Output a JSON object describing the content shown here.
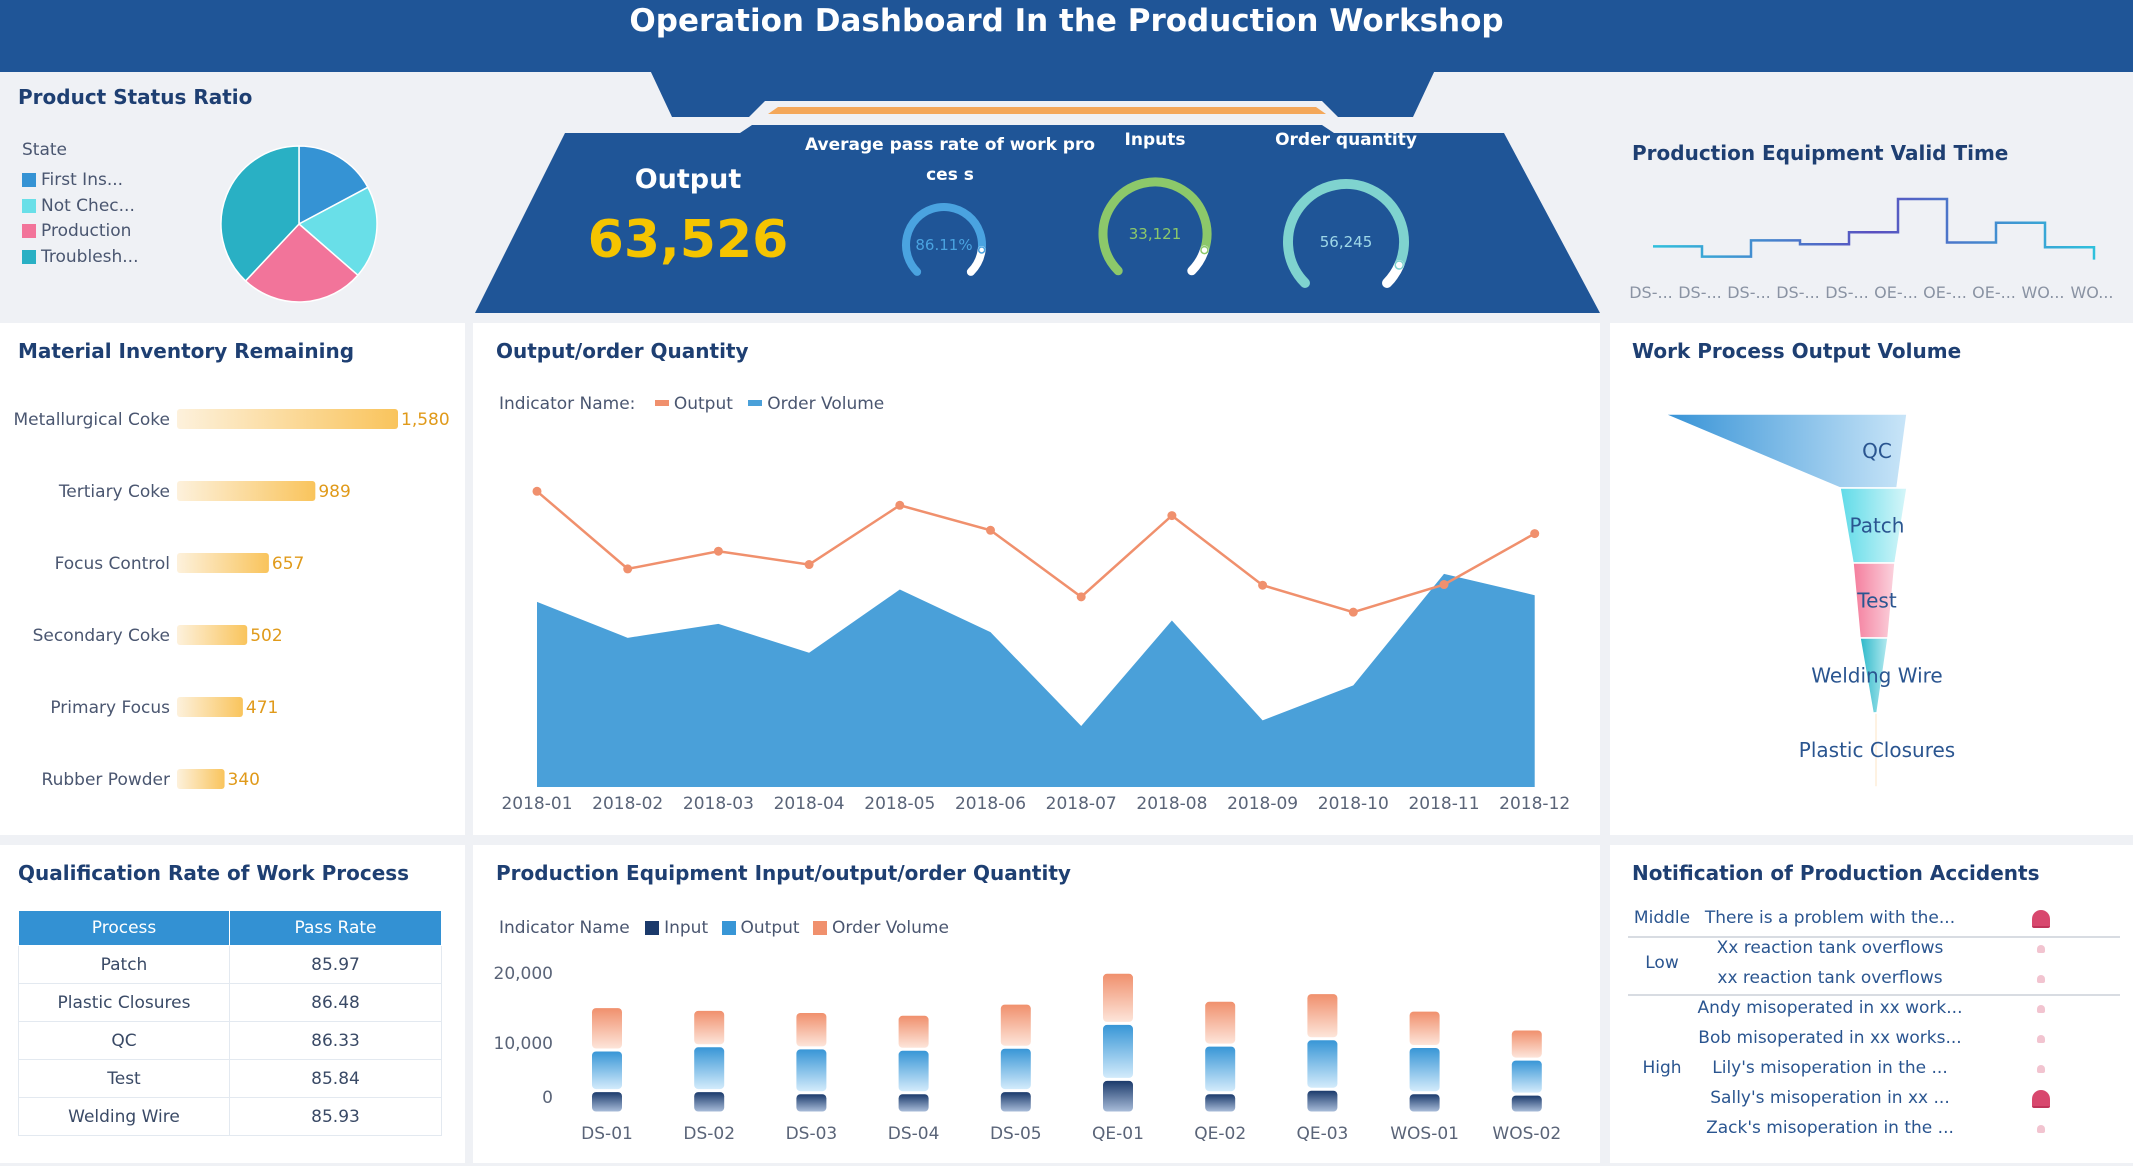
{
  "header": {
    "title": "Operation Dashboard In the Production Workshop"
  },
  "colors": {
    "header": "#1f5597",
    "title": "#1e3f72",
    "kpi_value": "#f5c400",
    "accent_orange": "#f4a85a"
  },
  "product_status": {
    "title": "Product Status Ratio",
    "legend_title": "State",
    "items": [
      {
        "label": "First Ins...",
        "percent": 17.2,
        "color": "#3593d4"
      },
      {
        "label": "Not Chec...",
        "percent": 19.2,
        "color": "#69dfe8"
      },
      {
        "label": "Production",
        "percent": 25.6,
        "color": "#f2749a"
      },
      {
        "label": "Troublesh...",
        "percent": 38.0,
        "color": "#29b0c4"
      }
    ]
  },
  "kpis": {
    "output": {
      "label": "Output",
      "value": "63,526"
    },
    "pass_rate": {
      "label": "Average pass rate of work proces s",
      "value": "86.11%",
      "fill": 0.8611,
      "color": "#4aa3e0"
    },
    "inputs": {
      "label": "Inputs",
      "value": "33,121",
      "fill": 0.9,
      "color": "#8cc86a"
    },
    "order_quantity": {
      "label": "Order quantity",
      "value": "56,245",
      "fill": 0.92,
      "color": "#7fd3cf"
    }
  },
  "equipment_valid_time": {
    "title": "Production Equipment Valid Time",
    "chart_data": {
      "type": "line",
      "step": true,
      "categories": [
        "DS-...",
        "DS-...",
        "DS-...",
        "DS-...",
        "DS-...",
        "OE-...",
        "OE-...",
        "OE-...",
        "WO...",
        "WO..."
      ],
      "values": [
        112,
        78,
        132,
        119,
        159,
        270,
        125,
        191,
        109,
        68
      ]
    }
  },
  "material_inventory": {
    "title": "Material Inventory Remaining",
    "chart_data": {
      "type": "bar",
      "orientation": "horizontal",
      "categories": [
        "Metallurgical Coke",
        "Tertiary Coke",
        "Focus Control",
        "Secondary Coke",
        "Primary Focus",
        "Rubber Powder"
      ],
      "values": [
        1580,
        989,
        657,
        502,
        471,
        340
      ],
      "labels": [
        "1,580",
        "989",
        "657",
        "502",
        "471",
        "340"
      ]
    }
  },
  "output_order": {
    "title": "Output/order Quantity",
    "legend_title": "Indicator Name:",
    "chart_data": {
      "type": "line",
      "categories": [
        "2018-01",
        "2018-02",
        "2018-03",
        "2018-04",
        "2018-05",
        "2018-06",
        "2018-07",
        "2018-08",
        "2018-09",
        "2018-10",
        "2018-11",
        "2018-12"
      ],
      "ylim": [
        0,
        1000
      ],
      "series": [
        {
          "name": "Output",
          "type": "line",
          "color": "#f0906d",
          "values": [
            888,
            655,
            708,
            668,
            846,
            771,
            571,
            815,
            606,
            525,
            608,
            761
          ]
        },
        {
          "name": "Order Volume",
          "type": "area",
          "color": "#4aa0d9",
          "values": [
            556,
            448,
            490,
            403,
            593,
            465,
            183,
            500,
            200,
            305,
            640,
            576
          ]
        }
      ]
    }
  },
  "work_process_output": {
    "title": "Work Process Output Volume",
    "chart_data": {
      "type": "funnel",
      "categories": [
        "QC",
        "Patch",
        "Test",
        "Welding Wire",
        "Plastic Closures"
      ],
      "values": [
        100,
        16,
        10,
        7,
        1
      ],
      "colors": [
        "#4a9fdc",
        "#74e0ea",
        "#f47d9c",
        "#3fbfd0",
        "#f9c98a"
      ]
    }
  },
  "qualification": {
    "title": "Qualification Rate of Work Process",
    "columns": [
      "Process",
      "Pass Rate"
    ],
    "rows": [
      [
        "Patch",
        "85.97"
      ],
      [
        "Plastic Closures",
        "86.48"
      ],
      [
        "QC",
        "86.33"
      ],
      [
        "Test",
        "85.84"
      ],
      [
        "Welding Wire",
        "85.93"
      ]
    ]
  },
  "equipment_ioo": {
    "title": "Production Equipment Input/output/order Quantity",
    "legend_title": "Indicator Name",
    "chart_data": {
      "type": "bar",
      "stacked": true,
      "categories": [
        "DS-01",
        "DS-02",
        "DS-03",
        "DS-04",
        "DS-05",
        "QE-01",
        "QE-02",
        "QE-03",
        "WOS-01",
        "WOS-02"
      ],
      "yticks": [
        "20,000",
        "10,000",
        "0"
      ],
      "series": [
        {
          "name": "Input",
          "color": "#1b3a6b",
          "values": [
            3200,
            3200,
            2900,
            2900,
            3200,
            4800,
            2900,
            3400,
            2900,
            2700
          ]
        },
        {
          "name": "Output",
          "color": "#3896d6",
          "values": [
            5800,
            6400,
            6400,
            6200,
            6200,
            8000,
            6800,
            7200,
            6600,
            5000
          ]
        },
        {
          "name": "Order Volume",
          "color": "#f0906d",
          "values": [
            6200,
            5200,
            5200,
            5000,
            6300,
            7300,
            6400,
            6600,
            5200,
            4300
          ]
        }
      ]
    }
  },
  "accidents": {
    "title": "Notification of Production Accidents",
    "levels": [
      "Middle",
      "Low",
      "High"
    ],
    "items": [
      {
        "text": "There is a problem with the...",
        "alarm": "active"
      },
      {
        "text": "Xx reaction tank overflows",
        "alarm": "inactive"
      },
      {
        "text": "xx reaction tank overflows",
        "alarm": "inactive"
      },
      {
        "text": "Andy misoperated in xx work...",
        "alarm": "inactive"
      },
      {
        "text": "Bob misoperated in xx works...",
        "alarm": "inactive"
      },
      {
        "text": "Lily's misoperation in the ...",
        "alarm": "inactive"
      },
      {
        "text": "Sally's misoperation in xx ...",
        "alarm": "active"
      },
      {
        "text": "Zack's misoperation in the ...",
        "alarm": "inactive"
      }
    ]
  }
}
